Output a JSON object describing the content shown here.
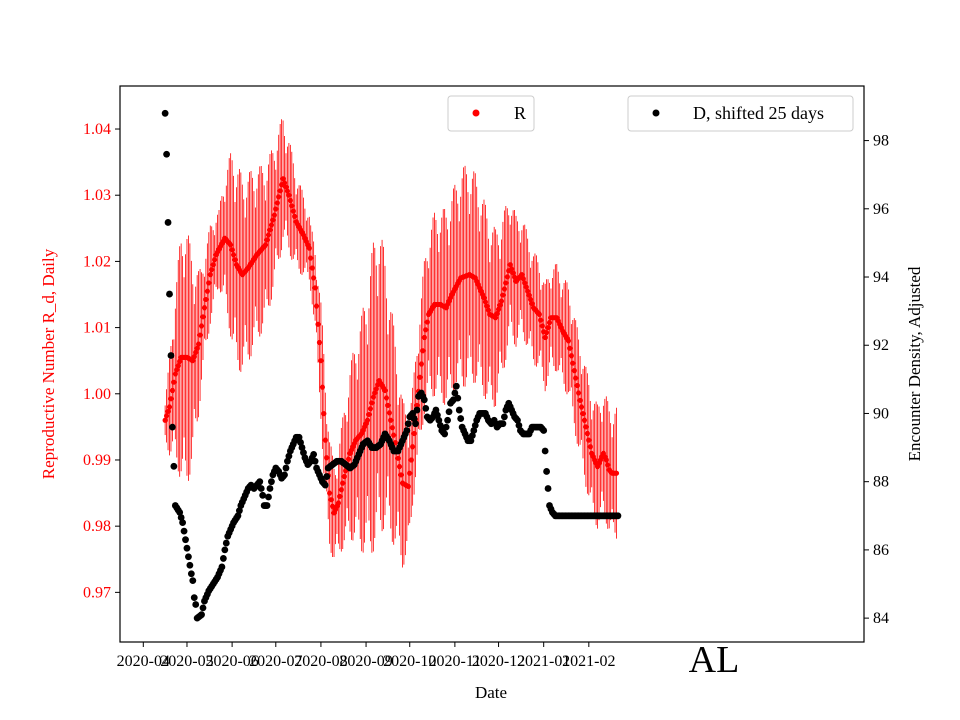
{
  "chart_data": {
    "type": "scatter",
    "title": "",
    "state_label": "AL",
    "xlabel": "Date",
    "ylabel_left": "Reproductive Number R_d, Daily",
    "ylabel_right": "Encounter Density, Adjusted",
    "x_tick_labels": [
      "2020-04",
      "2020-05",
      "2020-06",
      "2020-07",
      "2020-08",
      "2020-09",
      "2020-10",
      "2020-11",
      "2020-12",
      "2021-01",
      "2021-02"
    ],
    "x_range_days": [
      -16,
      495
    ],
    "x_start_date": "2020-04-01",
    "y_left": {
      "range": [
        0.9625,
        1.0465
      ],
      "ticks": [
        0.97,
        0.98,
        0.99,
        1.0,
        1.01,
        1.02,
        1.03,
        1.04
      ],
      "tick_labels": [
        "0.97",
        "0.98",
        "0.99",
        "1.00",
        "1.01",
        "1.02",
        "1.03",
        "1.04"
      ]
    },
    "y_right": {
      "range": [
        83.3,
        99.6
      ],
      "ticks": [
        84,
        86,
        88,
        90,
        92,
        94,
        96,
        98
      ],
      "tick_labels": [
        "84",
        "86",
        "88",
        "90",
        "92",
        "94",
        "96",
        "98"
      ]
    },
    "legend": [
      {
        "label": "R",
        "color": "#ff0000",
        "position": "top-center"
      },
      {
        "label": "D, shifted 25 days",
        "color": "#000000",
        "position": "top-right"
      }
    ],
    "colors": {
      "r_series": "#ff0000",
      "d_series": "#000000",
      "left_axis_text": "#ff0000"
    },
    "series": [
      {
        "name": "R",
        "axis": "left",
        "color": "#ff0000",
        "marker": "dot",
        "error_band": "daily confidence bars",
        "points_day_value": [
          [
            15,
            0.996
          ],
          [
            18,
            0.998
          ],
          [
            22,
            1.003
          ],
          [
            26,
            1.0055
          ],
          [
            30,
            1.0055
          ],
          [
            34,
            1.005
          ],
          [
            38,
            1.0075
          ],
          [
            42,
            1.013
          ],
          [
            46,
            1.018
          ],
          [
            50,
            1.021
          ],
          [
            56,
            1.0235
          ],
          [
            60,
            1.0225
          ],
          [
            64,
            1.0195
          ],
          [
            68,
            1.018
          ],
          [
            72,
            1.019
          ],
          [
            78,
            1.021
          ],
          [
            84,
            1.0225
          ],
          [
            90,
            1.027
          ],
          [
            96,
            1.0325
          ],
          [
            100,
            1.03
          ],
          [
            105,
            1.026
          ],
          [
            110,
            1.024
          ],
          [
            114,
            1.022
          ],
          [
            118,
            1.016
          ],
          [
            122,
            1.005
          ],
          [
            125,
            0.993
          ],
          [
            128,
            0.985
          ],
          [
            131,
            0.982
          ],
          [
            134,
            0.9835
          ],
          [
            138,
            0.9875
          ],
          [
            142,
            0.991
          ],
          [
            146,
            0.993
          ],
          [
            150,
            0.994
          ],
          [
            154,
            0.996
          ],
          [
            158,
            0.9995
          ],
          [
            162,
            1.002
          ],
          [
            166,
            1.0005
          ],
          [
            170,
            0.996
          ],
          [
            174,
            0.9915
          ],
          [
            178,
            0.9865
          ],
          [
            182,
            0.986
          ],
          [
            186,
            0.994
          ],
          [
            190,
            1.0025
          ],
          [
            193,
            1.0085
          ],
          [
            196,
            1.012
          ],
          [
            200,
            1.0135
          ],
          [
            204,
            1.0135
          ],
          [
            208,
            1.013
          ],
          [
            212,
            1.015
          ],
          [
            218,
            1.0175
          ],
          [
            224,
            1.018
          ],
          [
            228,
            1.0175
          ],
          [
            234,
            1.0145
          ],
          [
            238,
            1.012
          ],
          [
            242,
            1.0115
          ],
          [
            246,
            1.014
          ],
          [
            252,
            1.0195
          ],
          [
            256,
            1.017
          ],
          [
            260,
            1.018
          ],
          [
            264,
            1.0155
          ],
          [
            268,
            1.013
          ],
          [
            272,
            1.012
          ],
          [
            276,
            1.0085
          ],
          [
            280,
            1.0115
          ],
          [
            284,
            1.0115
          ],
          [
            288,
            1.0095
          ],
          [
            292,
            1.008
          ],
          [
            296,
            1.0035
          ],
          [
            300,
            0.999
          ],
          [
            304,
            0.995
          ],
          [
            308,
            0.991
          ],
          [
            312,
            0.989
          ],
          [
            316,
            0.991
          ],
          [
            318,
            0.99
          ],
          [
            320,
            0.9885
          ],
          [
            322,
            0.988
          ],
          [
            325,
            0.988
          ]
        ],
        "error_halfwidth_by_day": [
          [
            15,
            0.003
          ],
          [
            28,
            0.022
          ],
          [
            40,
            0.009
          ],
          [
            52,
            0.006
          ],
          [
            62,
            0.016
          ],
          [
            75,
            0.014
          ],
          [
            95,
            0.01
          ],
          [
            115,
            0.005
          ],
          [
            124,
            0.01
          ],
          [
            132,
            0.007
          ],
          [
            150,
            0.018
          ],
          [
            160,
            0.025
          ],
          [
            176,
            0.014
          ],
          [
            185,
            0.009
          ],
          [
            200,
            0.014
          ],
          [
            222,
            0.017
          ],
          [
            240,
            0.014
          ],
          [
            260,
            0.009
          ],
          [
            280,
            0.008
          ],
          [
            300,
            0.009
          ],
          [
            325,
            0.01
          ]
        ]
      },
      {
        "name": "D, shifted 25 days",
        "axis": "right",
        "color": "#000000",
        "marker": "dot",
        "points_day_value": [
          [
            15,
            98.8
          ],
          [
            16,
            97.6
          ],
          [
            17,
            95.6
          ],
          [
            18,
            93.5
          ],
          [
            19,
            91.7
          ],
          [
            20,
            89.6
          ],
          [
            22,
            87.3
          ],
          [
            25,
            87.1
          ],
          [
            27,
            86.8
          ],
          [
            29,
            86.3
          ],
          [
            31,
            85.8
          ],
          [
            33,
            85.3
          ],
          [
            34,
            85.1
          ],
          [
            35,
            84.6
          ],
          [
            36,
            84.4
          ],
          [
            37,
            84.0
          ],
          [
            40,
            84.1
          ],
          [
            42,
            84.5
          ],
          [
            45,
            84.8
          ],
          [
            48,
            85.0
          ],
          [
            51,
            85.2
          ],
          [
            54,
            85.5
          ],
          [
            56,
            86.0
          ],
          [
            58,
            86.4
          ],
          [
            60,
            86.6
          ],
          [
            62,
            86.8
          ],
          [
            65,
            87.0
          ],
          [
            67,
            87.3
          ],
          [
            70,
            87.6
          ],
          [
            72,
            87.8
          ],
          [
            74,
            87.9
          ],
          [
            76,
            87.8
          ],
          [
            78,
            87.9
          ],
          [
            80,
            88.0
          ],
          [
            82,
            87.6
          ],
          [
            83,
            87.3
          ],
          [
            85,
            87.3
          ],
          [
            87,
            87.8
          ],
          [
            89,
            88.2
          ],
          [
            91,
            88.4
          ],
          [
            93,
            88.3
          ],
          [
            95,
            88.1
          ],
          [
            97,
            88.2
          ],
          [
            99,
            88.6
          ],
          [
            101,
            88.9
          ],
          [
            103,
            89.1
          ],
          [
            105,
            89.3
          ],
          [
            107,
            89.3
          ],
          [
            109,
            89.0
          ],
          [
            111,
            88.7
          ],
          [
            113,
            88.5
          ],
          [
            115,
            88.6
          ],
          [
            117,
            88.8
          ],
          [
            119,
            88.4
          ],
          [
            121,
            88.2
          ],
          [
            123,
            88.0
          ],
          [
            125,
            87.9
          ],
          [
            127,
            88.4
          ],
          [
            130,
            88.5
          ],
          [
            133,
            88.6
          ],
          [
            136,
            88.6
          ],
          [
            139,
            88.5
          ],
          [
            142,
            88.4
          ],
          [
            145,
            88.5
          ],
          [
            148,
            88.8
          ],
          [
            151,
            89.1
          ],
          [
            154,
            89.2
          ],
          [
            157,
            89.0
          ],
          [
            160,
            89.0
          ],
          [
            163,
            89.1
          ],
          [
            166,
            89.4
          ],
          [
            169,
            89.2
          ],
          [
            172,
            88.9
          ],
          [
            175,
            88.9
          ],
          [
            178,
            89.2
          ],
          [
            181,
            89.5
          ],
          [
            183,
            89.9
          ],
          [
            185,
            90.0
          ],
          [
            187,
            89.7
          ],
          [
            189,
            90.5
          ],
          [
            191,
            90.6
          ],
          [
            193,
            90.4
          ],
          [
            195,
            89.9
          ],
          [
            197,
            89.8
          ],
          [
            199,
            89.9
          ],
          [
            201,
            90.1
          ],
          [
            203,
            89.8
          ],
          [
            205,
            89.5
          ],
          [
            207,
            89.4
          ],
          [
            209,
            89.8
          ],
          [
            211,
            90.3
          ],
          [
            213,
            90.4
          ],
          [
            215,
            90.8
          ],
          [
            217,
            90.1
          ],
          [
            219,
            89.6
          ],
          [
            221,
            89.4
          ],
          [
            223,
            89.2
          ],
          [
            225,
            89.2
          ],
          [
            227,
            89.5
          ],
          [
            229,
            89.8
          ],
          [
            231,
            90.0
          ],
          [
            233,
            90.0
          ],
          [
            235,
            90.0
          ],
          [
            237,
            89.8
          ],
          [
            239,
            89.7
          ],
          [
            241,
            89.8
          ],
          [
            243,
            89.6
          ],
          [
            245,
            89.7
          ],
          [
            247,
            89.7
          ],
          [
            249,
            90.1
          ],
          [
            251,
            90.3
          ],
          [
            253,
            90.1
          ],
          [
            255,
            89.9
          ],
          [
            257,
            89.8
          ],
          [
            259,
            89.5
          ],
          [
            261,
            89.4
          ],
          [
            263,
            89.4
          ],
          [
            265,
            89.4
          ],
          [
            267,
            89.6
          ],
          [
            269,
            89.6
          ],
          [
            271,
            89.6
          ],
          [
            273,
            89.6
          ],
          [
            275,
            89.5
          ],
          [
            277,
            88.3
          ],
          [
            279,
            87.3
          ],
          [
            281,
            87.1
          ],
          [
            283,
            87.0
          ],
          [
            287,
            87.0
          ],
          [
            292,
            87.0
          ],
          [
            297,
            87.0
          ],
          [
            302,
            87.0
          ],
          [
            307,
            87.0
          ],
          [
            312,
            87.0
          ],
          [
            317,
            87.0
          ],
          [
            322,
            87.0
          ],
          [
            326,
            87.0
          ]
        ]
      }
    ]
  }
}
